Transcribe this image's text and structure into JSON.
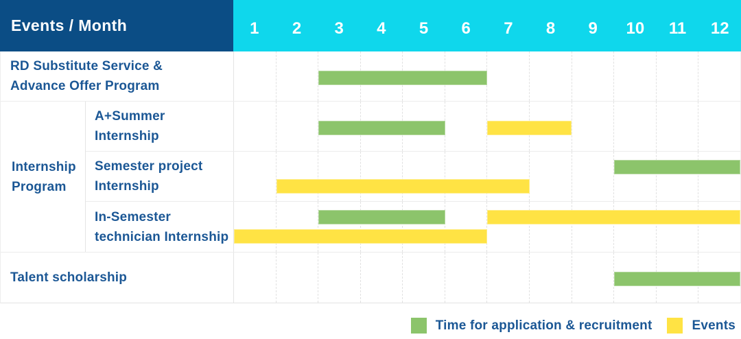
{
  "colors": {
    "header_bg": "#0b4d85",
    "months_bg": "#0fd7ec",
    "green": "#8cc46b",
    "yellow": "#ffe344",
    "text_blue": "#1b5795",
    "grid_line": "#e1e1e1"
  },
  "header": {
    "label": "Events / Month",
    "months": [
      "1",
      "2",
      "3",
      "4",
      "5",
      "6",
      "7",
      "8",
      "9",
      "10",
      "11",
      "12"
    ]
  },
  "chart_data": {
    "type": "gantt",
    "x_axis": {
      "label": "Month",
      "range": [
        1,
        12
      ],
      "ticks": [
        1,
        2,
        3,
        4,
        5,
        6,
        7,
        8,
        9,
        10,
        11,
        12
      ]
    },
    "bar_kinds": {
      "application": {
        "meaning": "Time for application & recruitment",
        "color": "#8cc46b"
      },
      "event": {
        "meaning": "Events",
        "color": "#ffe344"
      }
    },
    "rows": [
      {
        "group": "",
        "label": "RD Substitute Service &\nAdvance Offer Program",
        "bars": [
          {
            "kind": "application",
            "from": 3,
            "to": 6,
            "lane": "mid"
          }
        ]
      },
      {
        "group": "Internship\nProgram",
        "label": "A+Summer\nInternship",
        "bars": [
          {
            "kind": "application",
            "from": 3,
            "to": 5,
            "lane": "mid"
          },
          {
            "kind": "event",
            "from": 7,
            "to": 8,
            "lane": "mid"
          }
        ]
      },
      {
        "group": "Internship\nProgram",
        "label": "Semester project\nInternship",
        "bars": [
          {
            "kind": "application",
            "from": 10,
            "to": 12,
            "lane": "top"
          },
          {
            "kind": "event",
            "from": 2,
            "to": 7,
            "lane": "bottom"
          }
        ]
      },
      {
        "group": "Internship\nProgram",
        "label": "In-Semester\ntechnician Internship",
        "bars": [
          {
            "kind": "application",
            "from": 3,
            "to": 5,
            "lane": "top"
          },
          {
            "kind": "event",
            "from": 7,
            "to": 12,
            "lane": "top"
          },
          {
            "kind": "event",
            "from": 1,
            "to": 6,
            "lane": "bottom"
          }
        ]
      },
      {
        "group": "",
        "label": "Talent scholarship",
        "bars": [
          {
            "kind": "application",
            "from": 10,
            "to": 12,
            "lane": "mid"
          }
        ]
      }
    ],
    "legend": [
      {
        "kind": "application",
        "label": "Time for application & recruitment",
        "color": "#8cc46b"
      },
      {
        "kind": "event",
        "label": "Events",
        "color": "#ffe344"
      }
    ],
    "legend_position": "bottom-right"
  }
}
